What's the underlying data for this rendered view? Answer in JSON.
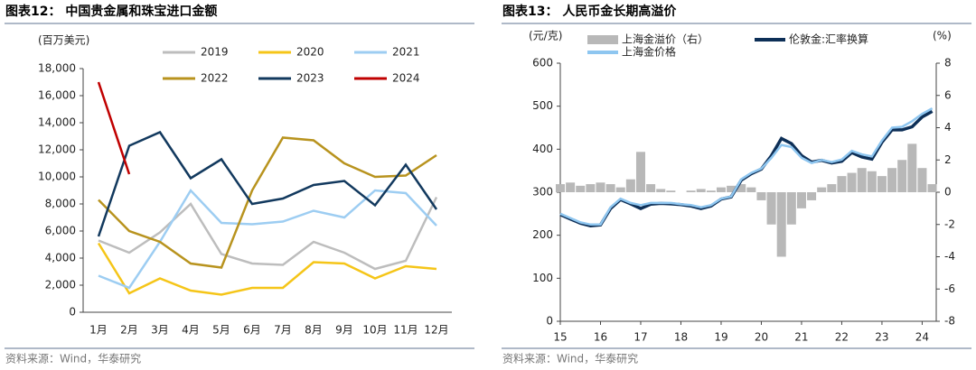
{
  "chart_data": [
    {
      "type": "line",
      "title": "图表12： 中国贵金属和珠宝进口金额",
      "unit": "(百万美元)",
      "source": "资料来源：Wind，华泰研究",
      "categories": [
        "1月",
        "2月",
        "3月",
        "4月",
        "5月",
        "6月",
        "7月",
        "8月",
        "9月",
        "10月",
        "11月",
        "12月"
      ],
      "ylim": [
        0,
        18000
      ],
      "yticks": [
        0,
        {
          "value": 2000,
          "label": "2,000"
        },
        {
          "value": 4000,
          "label": "4,000"
        },
        {
          "value": 6000,
          "label": "6,000"
        },
        {
          "value": 8000,
          "label": "8,000"
        },
        {
          "value": 10000,
          "label": "10,000"
        },
        {
          "value": 12000,
          "label": "12,000"
        },
        {
          "value": 14000,
          "label": "14,000"
        },
        {
          "value": 16000,
          "label": "16,000"
        },
        {
          "value": 18000,
          "label": "18,000"
        }
      ],
      "series": [
        {
          "name": "2019",
          "color": "#bdbdbd",
          "values": [
            5300,
            4400,
            5900,
            8000,
            4300,
            3600,
            3500,
            5200,
            4400,
            3200,
            3800,
            8500
          ]
        },
        {
          "name": "2020",
          "color": "#f5c518",
          "values": [
            5100,
            1400,
            2500,
            1600,
            1300,
            1800,
            1800,
            3700,
            3600,
            2500,
            3400,
            3200
          ]
        },
        {
          "name": "2021",
          "color": "#9dcdf2",
          "values": [
            2700,
            1800,
            5200,
            9000,
            6600,
            6500,
            6700,
            7500,
            7000,
            9000,
            8800,
            6400
          ]
        },
        {
          "name": "2022",
          "color": "#b8931e",
          "values": [
            8300,
            6000,
            5200,
            3600,
            3300,
            9000,
            12900,
            12700,
            11000,
            10000,
            10100,
            11600
          ]
        },
        {
          "name": "2023",
          "color": "#12395e",
          "values": [
            5600,
            12300,
            13300,
            9900,
            11300,
            8000,
            8400,
            9400,
            9700,
            7900,
            10900,
            7600
          ]
        },
        {
          "name": "2024",
          "color": "#c00000",
          "values": [
            17000,
            10200,
            null,
            null,
            null,
            null,
            null,
            null,
            null,
            null,
            null,
            null
          ]
        }
      ]
    },
    {
      "type": "line",
      "title": "图表13： 人民币金长期高溢价",
      "unit": "(元/克)",
      "unit2": "(%)",
      "source": "资料来源：Wind，华泰研究",
      "x": [
        2015,
        2015.25,
        2015.5,
        2015.75,
        2016,
        2016.25,
        2016.5,
        2016.75,
        2017,
        2017.25,
        2017.5,
        2017.75,
        2018,
        2018.25,
        2018.5,
        2018.75,
        2019,
        2019.25,
        2019.5,
        2019.75,
        2020,
        2020.25,
        2020.5,
        2020.75,
        2021,
        2021.25,
        2021.5,
        2021.75,
        2022,
        2022.25,
        2022.5,
        2022.75,
        2023,
        2023.25,
        2023.5,
        2023.75,
        2024,
        2024.25
      ],
      "xlim": [
        2015,
        2024.35
      ],
      "xticks": [
        {
          "value": 2015,
          "label": "15"
        },
        {
          "value": 2016,
          "label": "16"
        },
        {
          "value": 2017,
          "label": "17"
        },
        {
          "value": 2018,
          "label": "18"
        },
        {
          "value": 2019,
          "label": "19"
        },
        {
          "value": 2020,
          "label": "20"
        },
        {
          "value": 2021,
          "label": "21"
        },
        {
          "value": 2022,
          "label": "22"
        },
        {
          "value": 2023,
          "label": "23"
        },
        {
          "value": 2024,
          "label": "24"
        }
      ],
      "ylim": [
        0,
        600
      ],
      "yticks": [
        0,
        100,
        200,
        300,
        400,
        500,
        600
      ],
      "y2lim": [
        -8,
        8
      ],
      "y2ticks": [
        -8,
        -6,
        -4,
        -2,
        0,
        2,
        4,
        6,
        8
      ],
      "series": [
        {
          "name": "上海金溢价（右）",
          "color": "#b8b8b8",
          "type": "bar",
          "axis": "y2",
          "values": [
            0.5,
            0.6,
            0.4,
            0.5,
            0.6,
            0.5,
            0.3,
            0.8,
            2.5,
            0.5,
            0.2,
            0.1,
            0.0,
            0.1,
            0.2,
            0.1,
            0.3,
            0.4,
            0.5,
            0.3,
            -0.5,
            -2.0,
            -4.0,
            -2.0,
            -1.0,
            -0.5,
            0.3,
            0.5,
            1.0,
            1.2,
            1.5,
            1.3,
            1.0,
            1.5,
            2.0,
            3.0,
            1.5,
            0.5
          ]
        },
        {
          "name": "伦敦金:汇率换算",
          "color": "#0d2f57",
          "values": [
            248,
            238,
            228,
            222,
            224,
            262,
            283,
            273,
            262,
            272,
            274,
            273,
            271,
            268,
            262,
            268,
            284,
            289,
            328,
            343,
            354,
            385,
            425,
            413,
            385,
            370,
            374,
            368,
            372,
            392,
            382,
            377,
            416,
            445,
            445,
            452,
            475,
            488
          ]
        },
        {
          "name": "上海金价格",
          "color": "#8ec6f0",
          "values": [
            250,
            240,
            230,
            225,
            225,
            265,
            285,
            275,
            270,
            275,
            275,
            275,
            272,
            270,
            265,
            270,
            285,
            290,
            330,
            345,
            355,
            380,
            410,
            405,
            380,
            368,
            375,
            370,
            376,
            396,
            388,
            383,
            420,
            450,
            452,
            465,
            482,
            495
          ]
        }
      ]
    }
  ]
}
